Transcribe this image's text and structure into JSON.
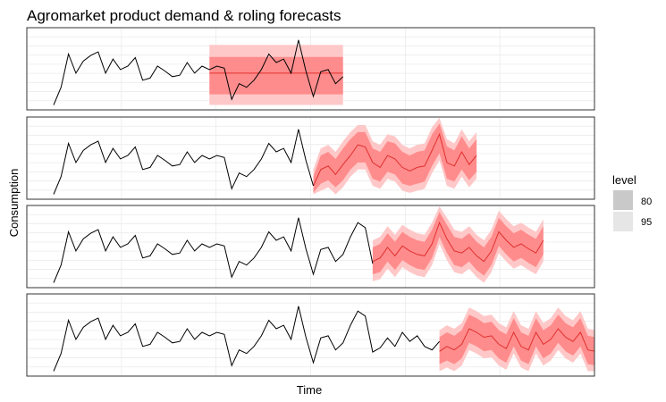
{
  "chart_data": {
    "type": "line",
    "title": "Agromarket product demand & roling forecasts",
    "xlabel": "Time",
    "ylabel": "Consumption",
    "grid": true,
    "legend": {
      "title": "level",
      "position": "right",
      "entries": [
        {
          "label": "80",
          "color": "#c9c9c9"
        },
        {
          "label": "95",
          "color": "#e6e6e6"
        }
      ]
    },
    "colors": {
      "actual": "#000000",
      "forecast_line": "#e0302e",
      "band80": "#ff8c8c",
      "band95": "#ffc8c8",
      "panel_border": "#333333",
      "grid": "#ebebeb"
    },
    "n_points": 66,
    "actual": [
      0.0,
      0.25,
      0.72,
      0.45,
      0.62,
      0.7,
      0.75,
      0.45,
      0.65,
      0.5,
      0.55,
      0.67,
      0.35,
      0.38,
      0.55,
      0.48,
      0.4,
      0.42,
      0.6,
      0.45,
      0.55,
      0.5,
      0.55,
      0.52,
      0.08,
      0.3,
      0.25,
      0.35,
      0.5,
      0.72,
      0.6,
      0.65,
      0.45,
      0.92,
      0.48,
      0.12,
      0.47,
      0.5,
      0.3,
      0.4,
      0.65,
      0.85,
      0.78,
      0.27,
      0.33,
      0.47,
      0.35,
      0.55,
      0.42,
      0.5,
      0.35,
      0.3,
      0.42,
      0.28,
      0.75,
      0.5,
      0.4,
      0.56,
      0.18,
      0.43,
      0.47,
      0.12,
      0.25,
      0.2,
      0.55,
      0.5
    ],
    "panels": [
      {
        "actual_end": 39,
        "forecast_start": 21,
        "forecast": [
          0.45,
          0.45,
          0.45,
          0.45,
          0.45,
          0.45,
          0.45,
          0.45,
          0.45,
          0.45,
          0.45,
          0.45,
          0.45,
          0.45,
          0.45,
          0.45,
          0.45,
          0.45,
          0.45
        ],
        "lower80": [
          0.15,
          0.15,
          0.15,
          0.15,
          0.15,
          0.15,
          0.15,
          0.15,
          0.15,
          0.15,
          0.15,
          0.15,
          0.15,
          0.15,
          0.15,
          0.15,
          0.15,
          0.15,
          0.15
        ],
        "upper80": [
          0.68,
          0.68,
          0.68,
          0.68,
          0.68,
          0.68,
          0.68,
          0.68,
          0.68,
          0.68,
          0.68,
          0.68,
          0.68,
          0.68,
          0.68,
          0.68,
          0.68,
          0.68,
          0.68
        ],
        "lower95": [
          0.0,
          0.0,
          0.0,
          0.0,
          0.0,
          0.0,
          0.0,
          0.0,
          0.0,
          0.0,
          0.0,
          0.0,
          0.0,
          0.0,
          0.0,
          0.0,
          0.0,
          0.0,
          0.0
        ],
        "upper95": [
          0.85,
          0.85,
          0.85,
          0.85,
          0.85,
          0.85,
          0.85,
          0.85,
          0.85,
          0.85,
          0.85,
          0.85,
          0.85,
          0.85,
          0.85,
          0.85,
          0.85,
          0.85,
          0.85
        ]
      },
      {
        "actual_end": 35,
        "forecast_start": 35,
        "forecast": [
          0.12,
          0.35,
          0.4,
          0.28,
          0.42,
          0.55,
          0.7,
          0.67,
          0.45,
          0.38,
          0.55,
          0.5,
          0.38,
          0.33,
          0.38,
          0.4,
          0.62,
          0.85,
          0.45,
          0.4,
          0.6,
          0.42,
          0.55
        ],
        "lower80": [
          0.02,
          0.15,
          0.2,
          0.1,
          0.2,
          0.35,
          0.45,
          0.45,
          0.22,
          0.18,
          0.32,
          0.28,
          0.15,
          0.12,
          0.15,
          0.18,
          0.4,
          0.58,
          0.22,
          0.18,
          0.35,
          0.2,
          0.32
        ],
        "upper80": [
          0.25,
          0.55,
          0.6,
          0.5,
          0.65,
          0.78,
          0.88,
          0.88,
          0.65,
          0.6,
          0.75,
          0.72,
          0.6,
          0.55,
          0.6,
          0.62,
          0.85,
          1.0,
          0.68,
          0.62,
          0.82,
          0.65,
          0.78
        ],
        "lower95": [
          0.0,
          0.05,
          0.1,
          0.0,
          0.1,
          0.25,
          0.35,
          0.35,
          0.12,
          0.08,
          0.22,
          0.18,
          0.05,
          0.02,
          0.05,
          0.08,
          0.3,
          0.48,
          0.12,
          0.08,
          0.25,
          0.1,
          0.22
        ],
        "upper95": [
          0.35,
          0.65,
          0.7,
          0.6,
          0.75,
          0.88,
          0.98,
          0.98,
          0.75,
          0.7,
          0.85,
          0.82,
          0.7,
          0.65,
          0.7,
          0.72,
          0.95,
          1.08,
          0.78,
          0.72,
          0.92,
          0.75,
          0.88
        ]
      },
      {
        "actual_end": 43,
        "forecast_start": 43,
        "forecast": [
          0.3,
          0.35,
          0.5,
          0.38,
          0.52,
          0.45,
          0.4,
          0.38,
          0.55,
          0.85,
          0.62,
          0.45,
          0.42,
          0.5,
          0.38,
          0.3,
          0.45,
          0.72,
          0.6,
          0.5,
          0.55,
          0.48,
          0.42,
          0.6
        ],
        "lower80": [
          0.12,
          0.15,
          0.3,
          0.18,
          0.32,
          0.25,
          0.2,
          0.18,
          0.35,
          0.65,
          0.42,
          0.25,
          0.22,
          0.3,
          0.18,
          0.1,
          0.25,
          0.52,
          0.4,
          0.3,
          0.35,
          0.28,
          0.22,
          0.4
        ],
        "upper80": [
          0.5,
          0.55,
          0.7,
          0.58,
          0.72,
          0.65,
          0.6,
          0.58,
          0.75,
          1.0,
          0.82,
          0.65,
          0.62,
          0.7,
          0.58,
          0.5,
          0.65,
          0.92,
          0.8,
          0.7,
          0.75,
          0.68,
          0.62,
          0.8
        ],
        "lower95": [
          0.02,
          0.05,
          0.2,
          0.08,
          0.22,
          0.15,
          0.1,
          0.08,
          0.25,
          0.55,
          0.32,
          0.15,
          0.12,
          0.2,
          0.08,
          0.0,
          0.15,
          0.42,
          0.3,
          0.2,
          0.25,
          0.18,
          0.12,
          0.3
        ],
        "upper95": [
          0.6,
          0.65,
          0.8,
          0.68,
          0.82,
          0.75,
          0.7,
          0.68,
          0.85,
          1.08,
          0.92,
          0.75,
          0.72,
          0.8,
          0.68,
          0.6,
          0.75,
          1.02,
          0.9,
          0.8,
          0.85,
          0.78,
          0.72,
          0.9
        ]
      },
      {
        "actual_end": 52,
        "forecast_start": 52,
        "forecast": [
          0.28,
          0.35,
          0.3,
          0.38,
          0.6,
          0.55,
          0.48,
          0.5,
          0.38,
          0.32,
          0.55,
          0.35,
          0.3,
          0.55,
          0.38,
          0.45,
          0.6,
          0.48,
          0.42,
          0.55,
          0.3,
          0.28,
          0.58,
          0.45
        ],
        "lower80": [
          0.1,
          0.15,
          0.1,
          0.18,
          0.4,
          0.35,
          0.28,
          0.3,
          0.18,
          0.12,
          0.35,
          0.15,
          0.1,
          0.35,
          0.18,
          0.25,
          0.4,
          0.28,
          0.22,
          0.35,
          0.1,
          0.08,
          0.38,
          0.25
        ],
        "upper80": [
          0.48,
          0.55,
          0.5,
          0.58,
          0.8,
          0.75,
          0.68,
          0.7,
          0.58,
          0.52,
          0.75,
          0.55,
          0.5,
          0.75,
          0.58,
          0.65,
          0.8,
          0.68,
          0.62,
          0.75,
          0.5,
          0.48,
          0.78,
          0.65
        ],
        "lower95": [
          0.0,
          0.05,
          0.0,
          0.08,
          0.3,
          0.25,
          0.18,
          0.2,
          0.08,
          0.02,
          0.25,
          0.05,
          0.0,
          0.25,
          0.08,
          0.15,
          0.3,
          0.18,
          0.12,
          0.25,
          0.0,
          0.0,
          0.28,
          0.15
        ],
        "upper95": [
          0.58,
          0.65,
          0.6,
          0.68,
          0.9,
          0.85,
          0.78,
          0.8,
          0.68,
          0.62,
          0.85,
          0.65,
          0.6,
          0.85,
          0.68,
          0.75,
          0.9,
          0.78,
          0.72,
          0.85,
          0.6,
          0.58,
          0.88,
          0.75
        ]
      }
    ]
  }
}
